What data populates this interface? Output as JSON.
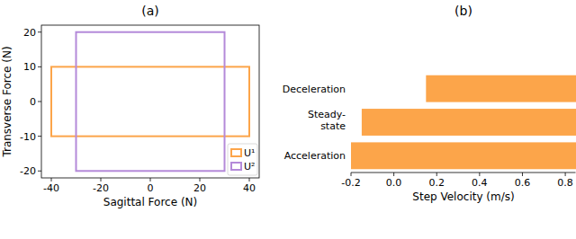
{
  "chart_data": [
    {
      "type": "rectangle",
      "title": "(a)",
      "x_label": "Sagittal Force (N)",
      "y_label": "Transverse Force (N)",
      "xlim": [
        -44,
        44
      ],
      "ylim": [
        -22,
        22
      ],
      "xticks": [
        -40,
        -20,
        0,
        20,
        40
      ],
      "yticks": [
        -20,
        -10,
        0,
        10,
        20
      ],
      "legend": "lower right",
      "series": [
        {
          "name": "U¹",
          "color": "#fca54a",
          "x": [
            -40,
            40
          ],
          "y": [
            -10,
            10
          ]
        },
        {
          "name": "U²",
          "color": "#b48ad9",
          "x": [
            -30,
            30
          ],
          "y": [
            -20,
            20
          ]
        }
      ]
    },
    {
      "type": "bar",
      "orientation": "horizontal",
      "title": "(b)",
      "x_label": "Step Velocity (m/s)",
      "categories": [
        "Acceleration",
        "Steady-state",
        "Deceleration"
      ],
      "starts": [
        -0.2,
        -0.15,
        0.15
      ],
      "values": [
        0.85,
        0.85,
        0.85
      ],
      "color": "#fca54a",
      "xlim": [
        -0.2,
        0.85
      ],
      "xticks": [
        -0.2,
        {
          "value": 0,
          "label": "0.0"
        },
        0.2,
        0.4,
        0.6,
        0.8
      ]
    }
  ]
}
